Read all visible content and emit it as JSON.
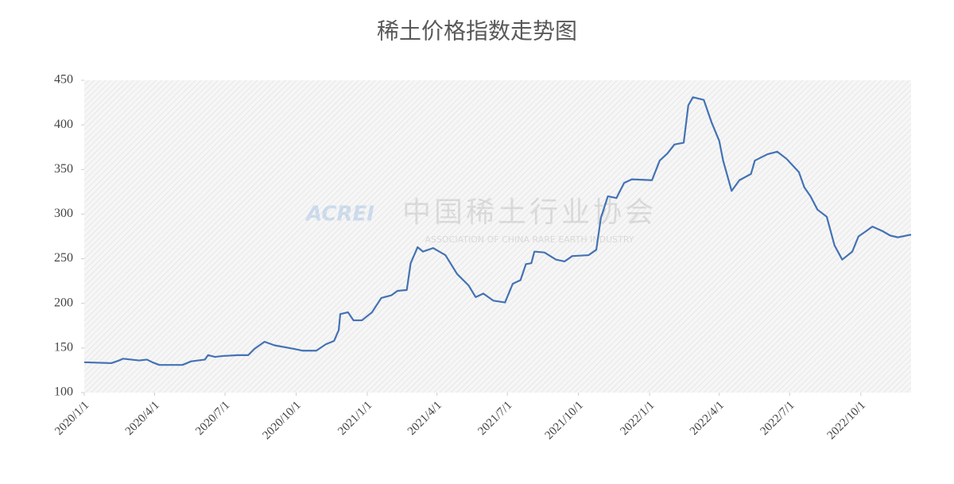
{
  "chart_data": {
    "type": "line",
    "title": "稀土价格指数走势图",
    "watermark": {
      "logo": "ACREI",
      "name": "中国稀土行业协会",
      "english": "ASSOCIATION OF CHINA RARE EARTH INDUSTRY"
    },
    "x": [
      "2020/1/1",
      "2020/2/5",
      "2020/2/15",
      "2020/2/20",
      "2020/3/12",
      "2020/3/22",
      "2020/3/29",
      "2020/4/7",
      "2020/5/7",
      "2020/5/18",
      "2020/6/5",
      "2020/6/9",
      "2020/6/18",
      "2020/6/28",
      "2020/7/18",
      "2020/7/31",
      "2020/8/8",
      "2020/8/21",
      "2020/9/3",
      "2020/9/28",
      "2020/10/9",
      "2020/10/27",
      "2020/11/8",
      "2020/11/19",
      "2020/11/25",
      "2020/11/27",
      "2020/12/7",
      "2020/12/14",
      "2020/12/25",
      "2021/1/7",
      "2021/1/19",
      "2021/2/1",
      "2021/2/9",
      "2021/2/21",
      "2021/2/26",
      "2021/3/7",
      "2021/3/14",
      "2021/3/27",
      "2021/4/12",
      "2021/4/27",
      "2021/5/12",
      "2021/5/21",
      "2021/5/31",
      "2021/6/13",
      "2021/6/28",
      "2021/7/8",
      "2021/7/18",
      "2021/7/25",
      "2021/8/1",
      "2021/8/5",
      "2021/8/18",
      "2021/9/2",
      "2021/9/13",
      "2021/9/23",
      "2021/10/14",
      "2021/10/24",
      "2021/10/30",
      "2021/11/8",
      "2021/11/19",
      "2021/11/29",
      "2021/12/9",
      "2022/1/4",
      "2022/1/14",
      "2022/1/24",
      "2022/2/2",
      "2022/2/14",
      "2022/2/20",
      "2022/2/26",
      "2022/3/12",
      "2022/3/22",
      "2022/4/1",
      "2022/4/6",
      "2022/4/17",
      "2022/4/27",
      "2022/5/12",
      "2022/5/17",
      "2022/6/2",
      "2022/6/15",
      "2022/6/27",
      "2022/7/13",
      "2022/7/20",
      "2022/7/28",
      "2022/8/6",
      "2022/8/18",
      "2022/8/28",
      "2022/9/7",
      "2022/9/20",
      "2022/9/28",
      "2022/10/8",
      "2022/10/16",
      "2022/10/29",
      "2022/11/8",
      "2022/11/18",
      "2022/12/5"
    ],
    "values": [
      134,
      133,
      136,
      138,
      136,
      137,
      134,
      131,
      131,
      135,
      137,
      142,
      140,
      141,
      142,
      142,
      149,
      157,
      153,
      149,
      147,
      147,
      154,
      158,
      170,
      188,
      190,
      181,
      181,
      190,
      206,
      209,
      214,
      215,
      245,
      263,
      258,
      262,
      254,
      233,
      220,
      207,
      211,
      203,
      201,
      222,
      226,
      244,
      245,
      258,
      257,
      249,
      247,
      253,
      254,
      260,
      296,
      320,
      318,
      335,
      339,
      338,
      360,
      368,
      378,
      380,
      422,
      431,
      428,
      403,
      382,
      360,
      326,
      338,
      345,
      360,
      367,
      370,
      362,
      347,
      330,
      320,
      305,
      297,
      265,
      249,
      258,
      275,
      281,
      286,
      281,
      276,
      274,
      277
    ],
    "color": "#4472b4",
    "xlim": [
      "2020/1/1",
      "2022/12/5"
    ],
    "xticks": [
      "2020/1/1",
      "2020/4/1",
      "2020/7/1",
      "2020/10/1",
      "2021/1/1",
      "2021/4/1",
      "2021/7/1",
      "2021/10/1",
      "2022/1/1",
      "2022/4/1",
      "2022/7/1",
      "2022/10/1"
    ],
    "ylim": [
      100,
      450
    ],
    "yticks": [
      100,
      150,
      200,
      250,
      300,
      350,
      400,
      450
    ]
  }
}
